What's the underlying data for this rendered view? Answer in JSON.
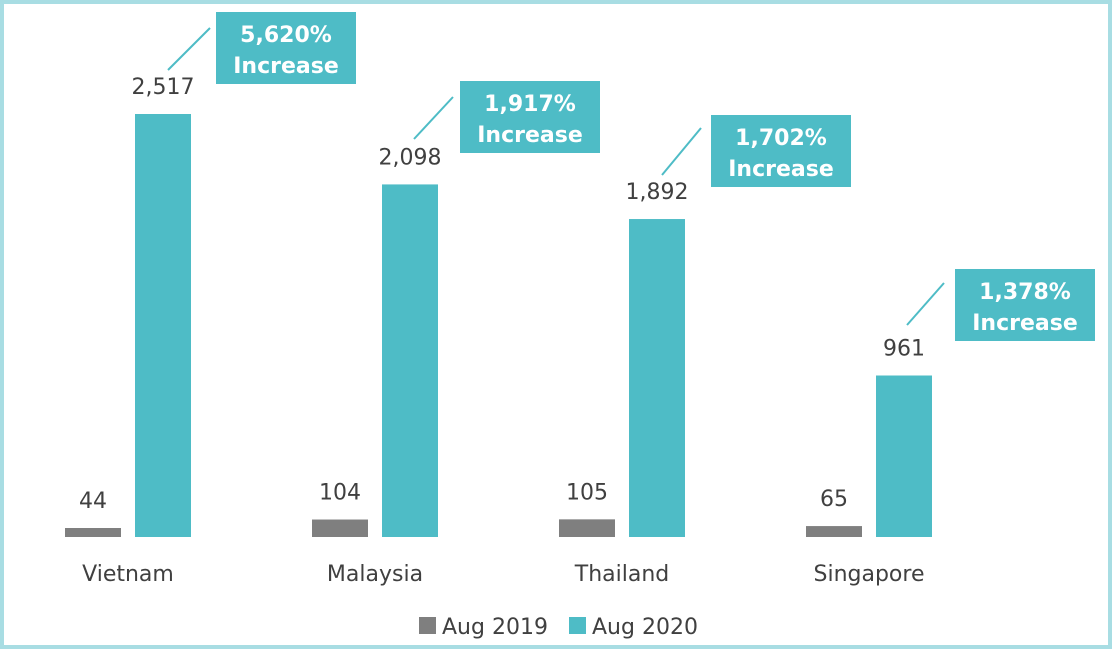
{
  "chart_data": {
    "type": "bar",
    "categories": [
      "Vietnam",
      "Malaysia",
      "Thailand",
      "Singapore"
    ],
    "series": [
      {
        "name": "Aug 2019",
        "color": "#7f7f7f",
        "values": [
          44,
          104,
          105,
          65
        ],
        "labels": [
          "44",
          "104",
          "105",
          "65"
        ]
      },
      {
        "name": "Aug 2020",
        "color": "#4ebcc6",
        "values": [
          2517,
          2098,
          1892,
          961
        ],
        "labels": [
          "2,517",
          "2,098",
          "1,892",
          "961"
        ]
      }
    ],
    "annotations": [
      {
        "category": "Vietnam",
        "line1": "5,620%",
        "line2": "Increase"
      },
      {
        "category": "Malaysia",
        "line1": "1,917%",
        "line2": "Increase"
      },
      {
        "category": "Thailand",
        "line1": "1,702%",
        "line2": "Increase"
      },
      {
        "category": "Singapore",
        "line1": "1,378%",
        "line2": "Increase"
      }
    ],
    "ylim": [
      0,
      2517
    ],
    "grid": false,
    "legend_position": "bottom-center",
    "title": "",
    "xlabel": "",
    "ylabel": ""
  }
}
